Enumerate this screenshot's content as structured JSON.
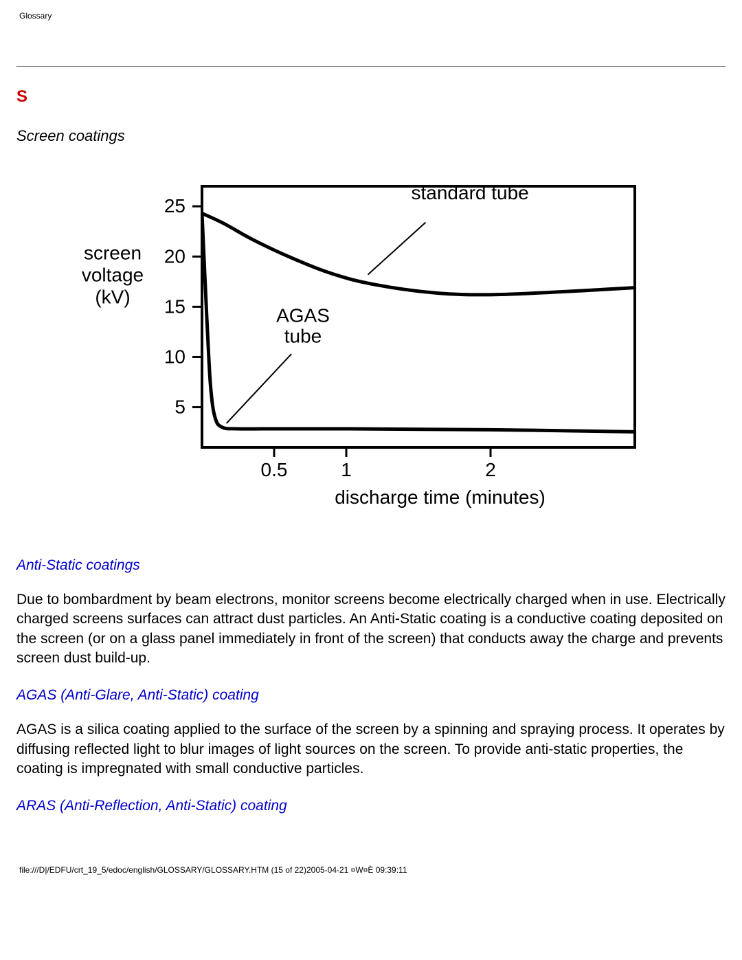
{
  "header": {
    "title": "Glossary"
  },
  "section_letter": "S",
  "term": "Screen coatings",
  "chart": {
    "type": "line",
    "ylabel_lines": [
      "screen",
      "voltage",
      "(kV)"
    ],
    "xlabel": "discharge time (minutes)",
    "label_fontsize": 28,
    "tick_fontsize": 28,
    "text_color": "#000000",
    "line_color": "#000000",
    "plot_border_width": 4,
    "curve_width": 5,
    "tick_width": 3,
    "tick_len": 14,
    "leader_width": 2,
    "background_color": "#ffffff",
    "xticks": [
      {
        "v": 0.5,
        "label": "0.5"
      },
      {
        "v": 1.0,
        "label": "1"
      },
      {
        "v": 2.0,
        "label": "2"
      }
    ],
    "yticks": [
      {
        "v": 5,
        "label": "5"
      },
      {
        "v": 10,
        "label": "10"
      },
      {
        "v": 15,
        "label": "15"
      },
      {
        "v": 20,
        "label": "20"
      },
      {
        "v": 25,
        "label": "25"
      }
    ],
    "xlim": [
      0,
      3
    ],
    "ylim": [
      1,
      27
    ],
    "series": [
      {
        "name": "standard tube",
        "label": "standard tube",
        "label_pos": {
          "x": 1.45,
          "y": 25.7
        },
        "leader": {
          "from": {
            "x": 1.55,
            "y": 23.4
          },
          "to": {
            "x": 1.15,
            "y": 18.2
          }
        },
        "points": [
          {
            "x": 0.0,
            "y": 24.3
          },
          {
            "x": 0.15,
            "y": 23.3
          },
          {
            "x": 0.35,
            "y": 21.7
          },
          {
            "x": 0.6,
            "y": 20.0
          },
          {
            "x": 0.9,
            "y": 18.3
          },
          {
            "x": 1.2,
            "y": 17.2
          },
          {
            "x": 1.6,
            "y": 16.4
          },
          {
            "x": 2.0,
            "y": 16.2
          },
          {
            "x": 2.5,
            "y": 16.5
          },
          {
            "x": 3.0,
            "y": 16.9
          }
        ]
      },
      {
        "name": "AGAS tube",
        "label_line1": "AGAS",
        "label_line2": "tube",
        "label_pos": {
          "x": 0.7,
          "y": 13.5
        },
        "leader": {
          "from": {
            "x": 0.62,
            "y": 10.3
          },
          "to": {
            "x": 0.17,
            "y": 3.4
          }
        },
        "points": [
          {
            "x": 0.0,
            "y": 24.3
          },
          {
            "x": 0.02,
            "y": 18.0
          },
          {
            "x": 0.04,
            "y": 12.0
          },
          {
            "x": 0.06,
            "y": 7.0
          },
          {
            "x": 0.09,
            "y": 4.0
          },
          {
            "x": 0.14,
            "y": 3.0
          },
          {
            "x": 0.25,
            "y": 2.85
          },
          {
            "x": 0.5,
            "y": 2.85
          },
          {
            "x": 1.0,
            "y": 2.85
          },
          {
            "x": 2.0,
            "y": 2.75
          },
          {
            "x": 3.0,
            "y": 2.55
          }
        ]
      }
    ]
  },
  "subsections": [
    {
      "heading": "Anti-Static coatings",
      "body": "Due to bombardment by beam electrons, monitor screens become electrically charged when in use. Electrically charged screens surfaces can attract dust particles. An Anti-Static coating is a conductive coating deposited on the screen (or on a glass panel immediately in front of the screen) that conducts away the charge and prevents screen dust build-up."
    },
    {
      "heading": "AGAS (Anti-Glare, Anti-Static) coating",
      "body": "AGAS is a silica coating applied to the surface of the screen by a spinning and spraying process. It operates by diffusing reflected light to blur images of light sources on the screen. To provide anti-static properties, the coating is impregnated with small conductive particles."
    },
    {
      "heading": "ARAS (Anti-Reflection, Anti-Static) coating",
      "body": ""
    }
  ],
  "footer": {
    "text": "file:///D|/EDFU/crt_19_5/edoc/english/GLOSSARY/GLOSSARY.HTM (15 of 22)2005-04-21 ¤W¤È 09:39:11"
  }
}
